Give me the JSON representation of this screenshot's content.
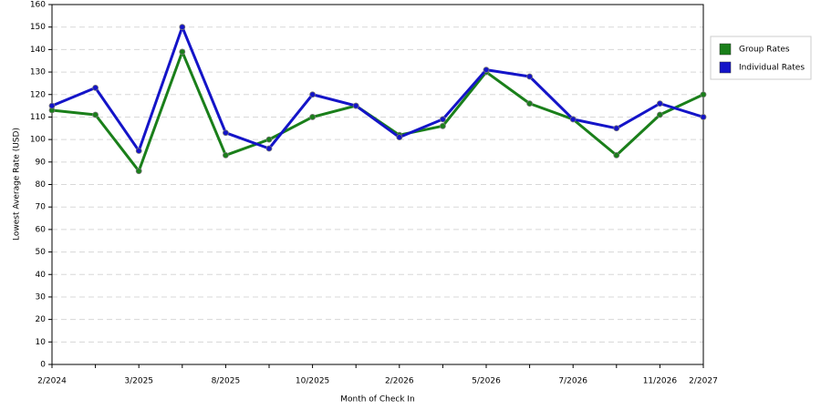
{
  "chart_data": {
    "type": "line",
    "x_label": "Month of Check In",
    "y_label": "Lowest Average Rate (USD)",
    "categories": [
      "2/2024",
      null,
      "3/2025",
      null,
      "8/2025",
      null,
      "10/2025",
      null,
      "2/2026",
      null,
      "5/2026",
      null,
      "7/2026",
      null,
      "11/2026",
      "2/2027"
    ],
    "series": [
      {
        "name": "Group Rates",
        "color": "#1a7f1a",
        "values": [
          113,
          111,
          86,
          139,
          93,
          100,
          110,
          115,
          102,
          106,
          130,
          116,
          109,
          93,
          111,
          120
        ]
      },
      {
        "name": "Individual Rates",
        "color": "#1414c8",
        "values": [
          115,
          123,
          95,
          150,
          103,
          96,
          120,
          115,
          101,
          109,
          131,
          128,
          109,
          105,
          116,
          110
        ]
      }
    ],
    "ylim": [
      0,
      160
    ],
    "yticks": [
      0,
      10,
      20,
      30,
      40,
      50,
      60,
      70,
      80,
      90,
      100,
      110,
      120,
      130,
      140,
      150,
      160
    ],
    "grid": true,
    "legend": "right"
  }
}
